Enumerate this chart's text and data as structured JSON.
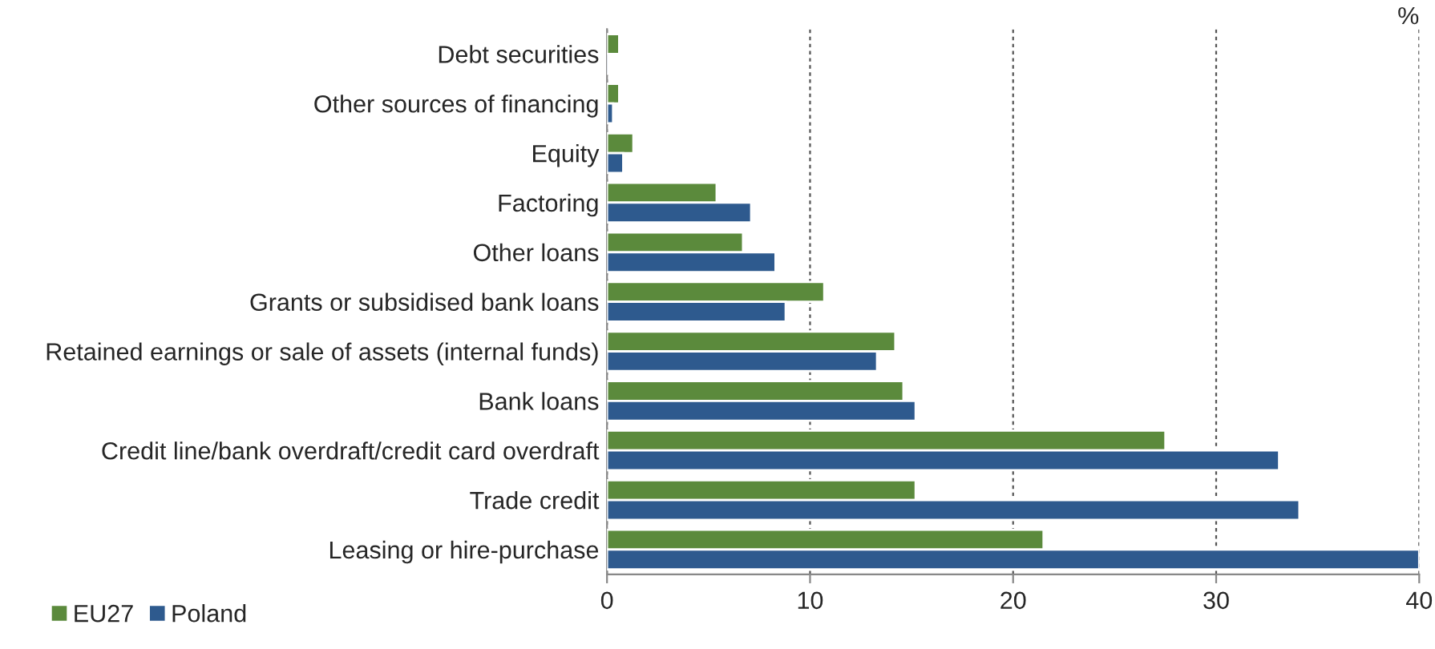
{
  "chart_data": {
    "type": "bar",
    "orientation": "horizontal",
    "xlabel": "%",
    "categories": [
      "Debt securities",
      "Other sources of financing",
      "Equity",
      "Factoring",
      "Other loans",
      "Grants or subsidised bank loans",
      "Retained earnings or sale of assets (internal funds)",
      "Bank loans",
      "Credit line/bank overdraft/credit card overdraft",
      "Trade credit",
      "Leasing or hire-purchase"
    ],
    "series": [
      {
        "name": "EU27",
        "color": "#5b8a3c",
        "values": [
          0.6,
          0.6,
          1.3,
          5.4,
          6.7,
          10.7,
          14.2,
          14.6,
          27.5,
          15.2,
          21.5
        ]
      },
      {
        "name": "Poland",
        "color": "#2e5a8e",
        "values": [
          0.1,
          0.3,
          0.8,
          7.1,
          8.3,
          8.8,
          13.3,
          15.2,
          33.1,
          34.1,
          40
        ]
      }
    ],
    "xlim": [
      0,
      40
    ],
    "xticks": [
      0,
      10,
      20,
      30,
      40
    ],
    "grid": "x",
    "legend": "bottom left"
  }
}
